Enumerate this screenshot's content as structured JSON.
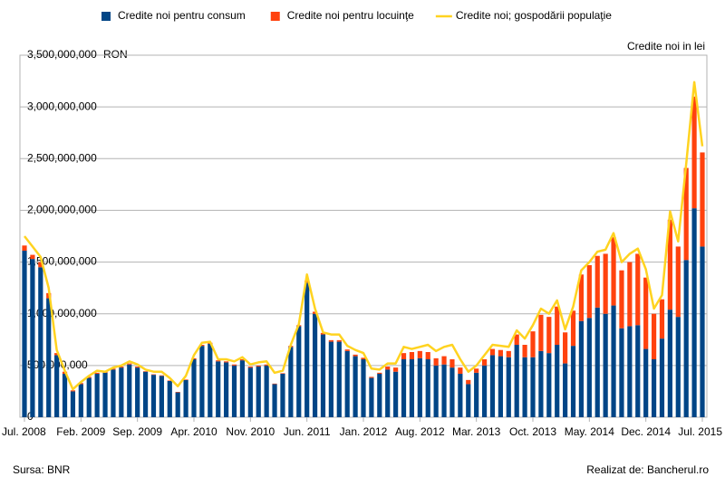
{
  "chart_data": {
    "type": "stacked_bar_line",
    "annotation": "Credite noi in lei",
    "y_unit": "RON",
    "source": "Sursa: BNR",
    "credit": "Realizat de: Bancherul.ro",
    "categories": [
      "Jul. 2008",
      null,
      null,
      null,
      null,
      null,
      null,
      "Feb. 2009",
      null,
      null,
      null,
      null,
      null,
      null,
      "Sep. 2009",
      null,
      null,
      null,
      null,
      null,
      null,
      "Apr. 2010",
      null,
      null,
      null,
      null,
      null,
      null,
      "Nov. 2010",
      null,
      null,
      null,
      null,
      null,
      null,
      "Jun. 2011",
      null,
      null,
      null,
      null,
      null,
      null,
      "Jan. 2012",
      null,
      null,
      null,
      null,
      null,
      null,
      "Aug. 2012",
      null,
      null,
      null,
      null,
      null,
      null,
      "Mar. 2013",
      null,
      null,
      null,
      null,
      null,
      null,
      "Oct. 2013",
      null,
      null,
      null,
      null,
      null,
      null,
      "May. 2014",
      null,
      null,
      null,
      null,
      null,
      null,
      "Dec. 2014",
      null,
      null,
      null,
      null,
      null,
      null,
      "Jul. 2015"
    ],
    "series": [
      {
        "name": "Credite noi pentru consum",
        "color": "#004586",
        "kind": "bar",
        "values": [
          1610000000.0,
          1530000000.0,
          1450000000.0,
          1150000000.0,
          600000000.0,
          420000000.0,
          250000000.0,
          320000000.0,
          380000000.0,
          420000000.0,
          430000000.0,
          460000000.0,
          480000000.0,
          510000000.0,
          480000000.0,
          440000000.0,
          410000000.0,
          400000000.0,
          350000000.0,
          240000000.0,
          360000000.0,
          560000000.0,
          690000000.0,
          710000000.0,
          540000000.0,
          530000000.0,
          500000000.0,
          550000000.0,
          480000000.0,
          490000000.0,
          500000000.0,
          320000000.0,
          420000000.0,
          680000000.0,
          880000000.0,
          1300000000.0,
          1000000000.0,
          800000000.0,
          730000000.0,
          730000000.0,
          640000000.0,
          590000000.0,
          560000000.0,
          380000000.0,
          420000000.0,
          460000000.0,
          440000000.0,
          560000000.0,
          560000000.0,
          570000000.0,
          560000000.0,
          500000000.0,
          510000000.0,
          480000000.0,
          420000000.0,
          320000000.0,
          430000000.0,
          500000000.0,
          600000000.0,
          590000000.0,
          580000000.0,
          700000000.0,
          580000000.0,
          580000000.0,
          640000000.0,
          620000000.0,
          700000000.0,
          520000000.0,
          690000000.0,
          930000000.0,
          960000000.0,
          1060000000.0,
          1000000000.0,
          1080000000.0,
          860000000.0,
          880000000.0,
          890000000.0,
          660000000.0,
          560000000.0,
          760000000.0,
          1040000000.0,
          970000000.0,
          1520000000.0,
          2020000000.0,
          1650000000.0
        ]
      },
      {
        "name": "Credite noi pentru locuinţe",
        "color": "#ff420e",
        "kind": "bar",
        "values": [
          50000000.0,
          40000000.0,
          50000000.0,
          50000000.0,
          20000000.0,
          20000000.0,
          10000000.0,
          10000000.0,
          10000000.0,
          10000000.0,
          10000000.0,
          10000000.0,
          10000000.0,
          10000000.0,
          10000000.0,
          5000000.0,
          5000000.0,
          5000000.0,
          5000000.0,
          5000000.0,
          5000000.0,
          10000000.0,
          10000000.0,
          10000000.0,
          10000000.0,
          10000000.0,
          10000000.0,
          10000000.0,
          10000000.0,
          10000000.0,
          10000000.0,
          5000000.0,
          5000000.0,
          10000000.0,
          10000000.0,
          20000000.0,
          20000000.0,
          15000000.0,
          15000000.0,
          15000000.0,
          15000000.0,
          15000000.0,
          15000000.0,
          10000000.0,
          10000000.0,
          30000000.0,
          40000000.0,
          60000000.0,
          70000000.0,
          70000000.0,
          70000000.0,
          70000000.0,
          80000000.0,
          80000000.0,
          60000000.0,
          40000000.0,
          40000000.0,
          60000000.0,
          60000000.0,
          60000000.0,
          60000000.0,
          100000000.0,
          120000000.0,
          250000000.0,
          350000000.0,
          350000000.0,
          370000000.0,
          300000000.0,
          340000000.0,
          450000000.0,
          510000000.0,
          500000000.0,
          580000000.0,
          660000000.0,
          560000000.0,
          620000000.0,
          690000000.0,
          690000000.0,
          440000000.0,
          380000000.0,
          870000000.0,
          680000000.0,
          890000000.0,
          1080000000.0,
          910000000.0
        ]
      },
      {
        "name": "Credite noi; gospodării populaţie",
        "color": "#ffd320",
        "kind": "line",
        "values": [
          1750000000.0,
          1650000000.0,
          1550000000.0,
          1250000000.0,
          650000000.0,
          450000000.0,
          270000000.0,
          340000000.0,
          400000000.0,
          450000000.0,
          440000000.0,
          480000000.0,
          500000000.0,
          540000000.0,
          510000000.0,
          460000000.0,
          440000000.0,
          440000000.0,
          380000000.0,
          300000000.0,
          400000000.0,
          600000000.0,
          720000000.0,
          730000000.0,
          560000000.0,
          560000000.0,
          540000000.0,
          580000000.0,
          510000000.0,
          530000000.0,
          540000000.0,
          430000000.0,
          450000000.0,
          700000000.0,
          900000000.0,
          1380000000.0,
          1050000000.0,
          820000000.0,
          800000000.0,
          800000000.0,
          690000000.0,
          650000000.0,
          620000000.0,
          470000000.0,
          460000000.0,
          520000000.0,
          520000000.0,
          680000000.0,
          660000000.0,
          680000000.0,
          700000000.0,
          640000000.0,
          680000000.0,
          700000000.0,
          560000000.0,
          440000000.0,
          500000000.0,
          600000000.0,
          700000000.0,
          690000000.0,
          680000000.0,
          840000000.0,
          760000000.0,
          890000000.0,
          1050000000.0,
          1000000000.0,
          1130000000.0,
          850000000.0,
          1070000000.0,
          1420000000.0,
          1500000000.0,
          1600000000.0,
          1620000000.0,
          1780000000.0,
          1500000000.0,
          1580000000.0,
          1630000000.0,
          1430000000.0,
          1050000000.0,
          1180000000.0,
          1990000000.0,
          1700000000.0,
          2450000000.0,
          3240000000.0,
          2620000000.0
        ]
      }
    ],
    "ylim": [
      0,
      3500000000
    ],
    "yticks": [
      0,
      {
        "value": 500000000,
        "label": "500,000,000"
      },
      {
        "value": 1000000000,
        "label": "1,000,000,000"
      },
      {
        "value": 1500000000,
        "label": "1,500,000,000"
      },
      {
        "value": 2000000000,
        "label": "2,000,000,000"
      },
      {
        "value": 2500000000,
        "label": "2,500,000,000"
      },
      {
        "value": 3000000000,
        "label": "3,000,000,000"
      },
      {
        "value": 3500000000,
        "label": "3,500,000,000"
      }
    ],
    "grid": true,
    "legend": "top"
  }
}
